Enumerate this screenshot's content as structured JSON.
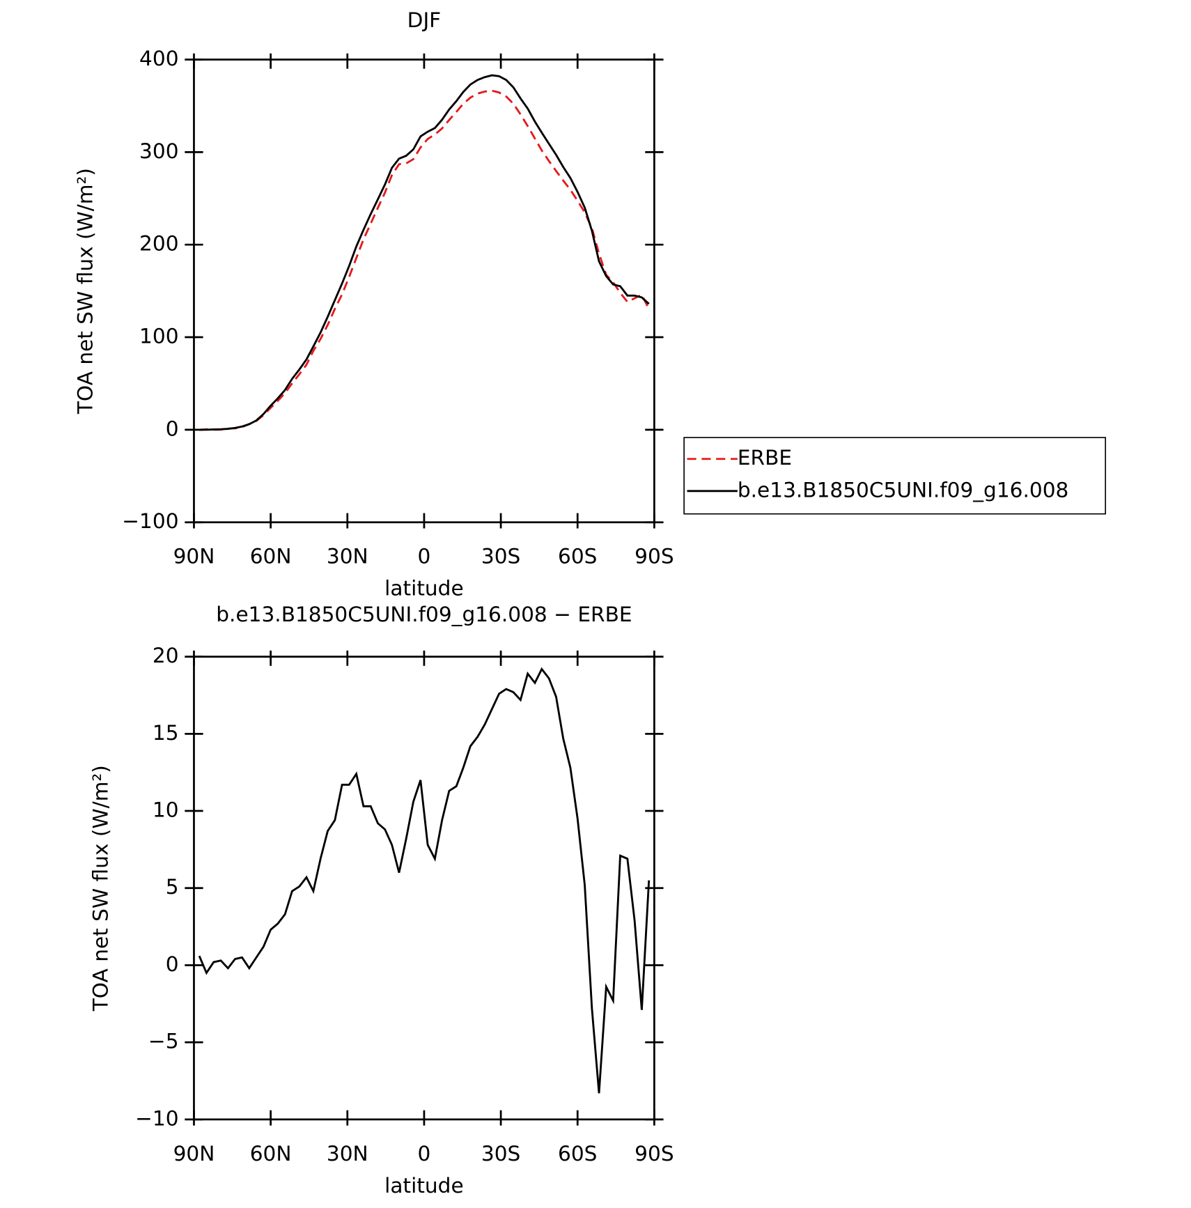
{
  "chart_data": [
    {
      "type": "line",
      "title": "DJF",
      "xlabel": "latitude",
      "ylabel": "TOA net SW flux (W/m²)",
      "x": [
        87.9,
        85.1,
        82.3,
        79.5,
        76.7,
        73.9,
        71.2,
        68.4,
        65.6,
        62.8,
        60.0,
        57.2,
        54.4,
        51.6,
        48.8,
        46.0,
        43.3,
        40.5,
        37.7,
        34.9,
        32.1,
        29.3,
        26.5,
        23.7,
        20.9,
        18.1,
        15.3,
        12.6,
        9.8,
        7.0,
        4.2,
        1.4,
        -1.4,
        -4.2,
        -7.0,
        -9.8,
        -12.6,
        -15.3,
        -18.1,
        -20.9,
        -23.7,
        -26.5,
        -29.3,
        -32.1,
        -34.9,
        -37.7,
        -40.5,
        -43.3,
        -46.0,
        -48.8,
        -51.6,
        -54.4,
        -57.2,
        -60.0,
        -62.8,
        -65.6,
        -68.4,
        -71.2,
        -73.9,
        -76.7,
        -79.5,
        -82.3,
        -85.1,
        -87.9
      ],
      "series": [
        {
          "name": "ERBE",
          "color": "#e41a1c",
          "dash": true,
          "values": [
            0,
            0.5,
            0.1,
            0.2,
            1.2,
            1.6,
            3.0,
            6.2,
            9.5,
            15.8,
            23.7,
            31.3,
            39.7,
            50.2,
            59.9,
            70.3,
            85.2,
            98.1,
            113.3,
            130.6,
            146.3,
            165.3,
            185.6,
            205.7,
            222.7,
            239.8,
            256.2,
            275.2,
            287,
            287.8,
            292.4,
            305,
            314.2,
            319.1,
            325.6,
            334.7,
            343.4,
            352.2,
            358.8,
            363.2,
            365.4,
            366.4,
            364.4,
            360.1,
            352.3,
            340.8,
            328.1,
            314.7,
            301.8,
            290.4,
            279.6,
            269.3,
            259.2,
            247.5,
            234.8,
            217.8,
            190.3,
            167.4,
            159.3,
            147.9,
            138.1,
            142.1,
            145.9,
            130.5
          ]
        },
        {
          "name": "b.e13.B1850C5UNI.f09_g16.008",
          "color": "#000000",
          "dash": false,
          "values": [
            0,
            0,
            0.3,
            0.5,
            1,
            2,
            3.5,
            6,
            10,
            17,
            26,
            34,
            43,
            55,
            65,
            76,
            90,
            105,
            122,
            140,
            158,
            177,
            198,
            216,
            233,
            249,
            265,
            283,
            293,
            296,
            303,
            317,
            322,
            326,
            335,
            346,
            355,
            365,
            373,
            378,
            381,
            383,
            382,
            378,
            370,
            358,
            347,
            333,
            321,
            309,
            297,
            284,
            272,
            257,
            240,
            215,
            182,
            166,
            157,
            155,
            145,
            145,
            143,
            136
          ]
        }
      ],
      "xlim": [
        90,
        -90
      ],
      "xticks": [
        {
          "value": 90,
          "label": "90N"
        },
        {
          "value": 60,
          "label": "60N"
        },
        {
          "value": 30,
          "label": "30N"
        },
        0,
        {
          "value": -30,
          "label": "30S"
        },
        {
          "value": -60,
          "label": "60S"
        },
        {
          "value": -90,
          "label": "90S"
        }
      ],
      "ylim": [
        -100,
        400
      ],
      "yticks": [
        {
          "value": -100,
          "label": "−100"
        },
        0,
        100,
        200,
        300,
        400
      ],
      "grid": false,
      "legend": "right"
    },
    {
      "type": "line",
      "title": "b.e13.B1850C5UNI.f09_g16.008 − ERBE",
      "xlabel": "latitude",
      "ylabel": "TOA net SW flux (W/m²)",
      "x": [
        87.9,
        85.1,
        82.3,
        79.5,
        76.7,
        73.9,
        71.2,
        68.4,
        65.6,
        62.8,
        60.0,
        57.2,
        54.4,
        51.6,
        48.8,
        46.0,
        43.3,
        40.5,
        37.7,
        34.9,
        32.1,
        29.3,
        26.5,
        23.7,
        20.9,
        18.1,
        15.3,
        12.6,
        9.8,
        7.0,
        4.2,
        1.4,
        -1.4,
        -4.2,
        -7.0,
        -9.8,
        -12.6,
        -15.3,
        -18.1,
        -20.9,
        -23.7,
        -26.5,
        -29.3,
        -32.1,
        -34.9,
        -37.7,
        -40.5,
        -43.3,
        -46.0,
        -48.8,
        -51.6,
        -54.4,
        -57.2,
        -60.0,
        -62.8,
        -65.6,
        -68.4,
        -71.2,
        -73.9,
        -76.7,
        -79.5,
        -82.3,
        -85.1,
        -87.9
      ],
      "values": [
        0.6,
        -0.5,
        0.2,
        0.3,
        -0.2,
        0.4,
        0.5,
        -0.2,
        0.5,
        1.2,
        2.3,
        2.7,
        3.3,
        4.8,
        5.1,
        5.7,
        4.8,
        6.9,
        8.7,
        9.4,
        11.7,
        11.7,
        12.4,
        10.3,
        10.3,
        9.2,
        8.8,
        7.8,
        6.0,
        8.2,
        10.6,
        12.0,
        7.8,
        6.9,
        9.4,
        11.3,
        11.6,
        12.8,
        14.2,
        14.8,
        15.6,
        16.6,
        17.6,
        17.9,
        17.7,
        17.2,
        18.9,
        18.3,
        19.2,
        18.6,
        17.4,
        14.7,
        12.8,
        9.5,
        5.2,
        -2.8,
        -8.3,
        -1.4,
        -2.3,
        7.1,
        6.9,
        2.9,
        -2.9,
        5.5
      ],
      "color": "#000000",
      "xlim": [
        90,
        -90
      ],
      "xticks": [
        {
          "value": 90,
          "label": "90N"
        },
        {
          "value": 60,
          "label": "60N"
        },
        {
          "value": 30,
          "label": "30N"
        },
        0,
        {
          "value": -30,
          "label": "30S"
        },
        {
          "value": -60,
          "label": "60S"
        },
        {
          "value": -90,
          "label": "90S"
        }
      ],
      "ylim": [
        -10,
        20
      ],
      "yticks": [
        {
          "value": -10,
          "label": "−10"
        },
        {
          "value": -5,
          "label": "−5"
        },
        0,
        5,
        10,
        15,
        20
      ],
      "grid": false
    }
  ]
}
